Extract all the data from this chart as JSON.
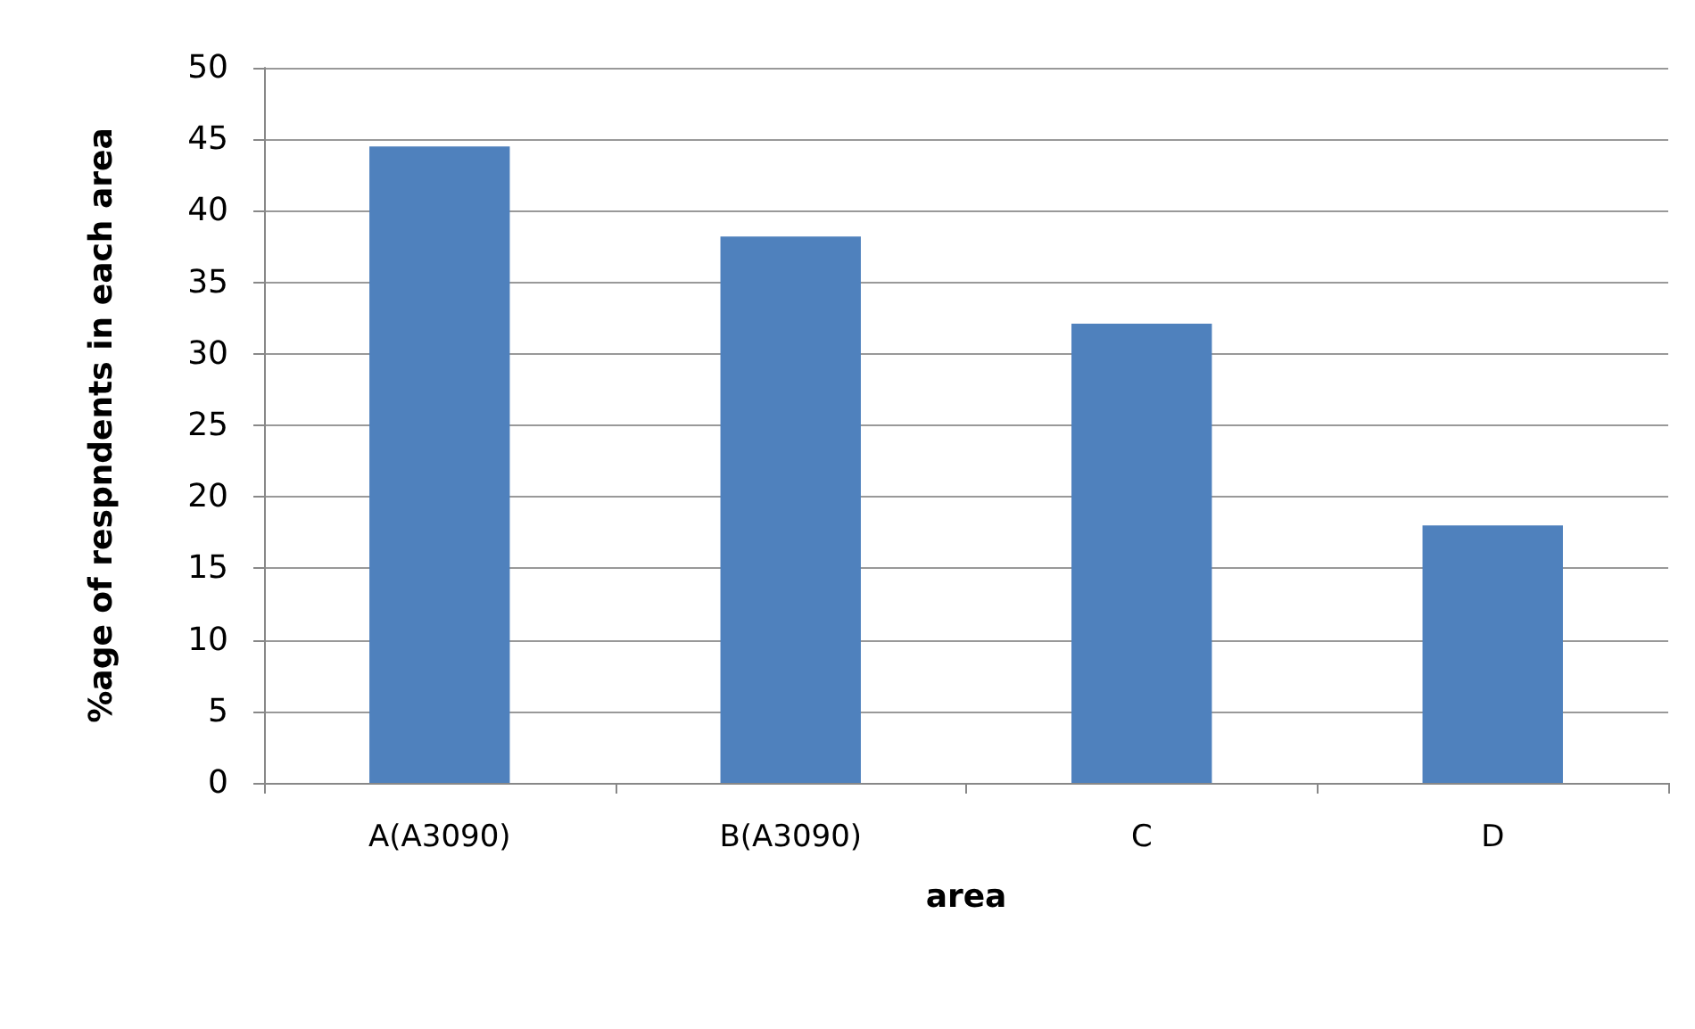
{
  "chart_data": {
    "type": "bar",
    "xlabel": "area",
    "ylabel": "%age of respndents in each area",
    "categories": [
      "A(A3090)",
      "B(A3090)",
      "C",
      "D"
    ],
    "values": [
      44.5,
      38.2,
      32.1,
      18
    ],
    "color": "#4f81bd",
    "ylim": [
      0,
      50
    ],
    "yticks": [
      0,
      5,
      10,
      15,
      20,
      25,
      30,
      35,
      40,
      45,
      50
    ],
    "grid": "y"
  }
}
